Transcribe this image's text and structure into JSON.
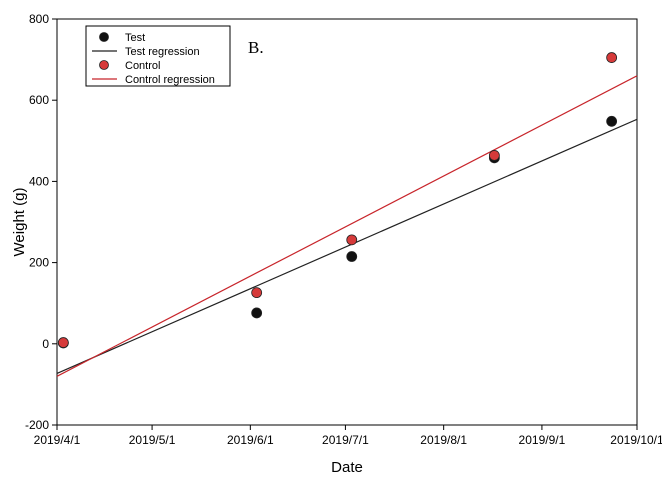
{
  "chart_data": {
    "type": "scatter",
    "panel_label": "B.",
    "xlabel": "Date",
    "ylabel": "Weight (g)",
    "xlim": [
      "2019-04-01",
      "2019-10-01"
    ],
    "ylim": [
      -200,
      800
    ],
    "x_ticks": [
      "2019-04-01",
      "2019-05-01",
      "2019-06-01",
      "2019-07-01",
      "2019-08-01",
      "2019-09-01",
      "2019-10-01"
    ],
    "x_tick_labels": [
      "2019/4/1",
      "2019/5/1",
      "2019/6/1",
      "2019/7/1",
      "2019/8/1",
      "2019/9/1",
      "2019/10/1"
    ],
    "y_ticks": [
      -200,
      0,
      200,
      400,
      600,
      800
    ],
    "y_tick_labels": [
      "-200",
      "0",
      "200",
      "400",
      "600",
      "800"
    ],
    "grid": false,
    "legend_position": "top-left",
    "series": [
      {
        "name": "Test",
        "kind": "points",
        "color": "#111111",
        "points": [
          {
            "x": "2019-04-03",
            "y": 2
          },
          {
            "x": "2019-06-03",
            "y": 76
          },
          {
            "x": "2019-07-03",
            "y": 215
          },
          {
            "x": "2019-08-17",
            "y": 458
          },
          {
            "x": "2019-09-23",
            "y": 548
          }
        ]
      },
      {
        "name": "Test regression",
        "kind": "line",
        "color": "#222222",
        "points": [
          {
            "x": "2019-04-01",
            "y": -73
          },
          {
            "x": "2019-10-01",
            "y": 553
          }
        ]
      },
      {
        "name": "Control",
        "kind": "points",
        "color": "#d63a3a",
        "points": [
          {
            "x": "2019-04-03",
            "y": 3
          },
          {
            "x": "2019-06-03",
            "y": 126
          },
          {
            "x": "2019-07-03",
            "y": 256
          },
          {
            "x": "2019-08-17",
            "y": 464
          },
          {
            "x": "2019-09-23",
            "y": 705
          }
        ]
      },
      {
        "name": "Control regression",
        "kind": "line",
        "color": "#c8252b",
        "points": [
          {
            "x": "2019-04-01",
            "y": -80
          },
          {
            "x": "2019-10-01",
            "y": 660
          }
        ]
      }
    ]
  }
}
